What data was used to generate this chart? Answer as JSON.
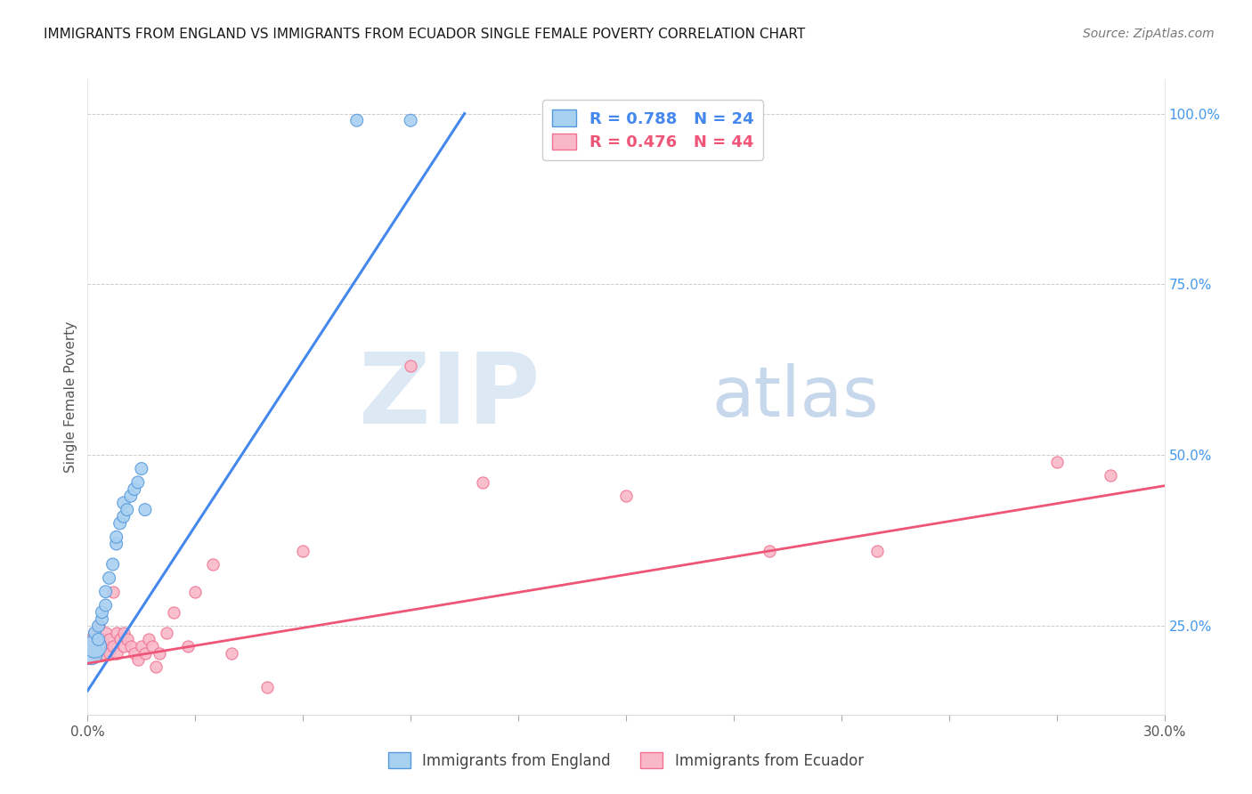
{
  "title": "IMMIGRANTS FROM ENGLAND VS IMMIGRANTS FROM ECUADOR SINGLE FEMALE POVERTY CORRELATION CHART",
  "source": "Source: ZipAtlas.com",
  "ylabel": "Single Female Poverty",
  "ylabel_right_ticks": [
    "25.0%",
    "50.0%",
    "75.0%",
    "100.0%"
  ],
  "ylabel_right_vals": [
    0.25,
    0.5,
    0.75,
    1.0
  ],
  "xmin": 0.0,
  "xmax": 0.3,
  "ymin": 0.12,
  "ymax": 1.05,
  "legend_england_R": "0.788",
  "legend_england_N": "24",
  "legend_ecuador_R": "0.476",
  "legend_ecuador_N": "44",
  "color_england_fill": "#a8d0f0",
  "color_ecuador_fill": "#f9b8c8",
  "color_england_edge": "#5599dd",
  "color_ecuador_edge": "#f07090",
  "color_england_line": "#4488ee",
  "color_ecuador_line": "#ee5577",
  "england_x": [
    0.001,
    0.002,
    0.002,
    0.003,
    0.003,
    0.004,
    0.004,
    0.005,
    0.005,
    0.006,
    0.007,
    0.008,
    0.008,
    0.009,
    0.01,
    0.01,
    0.011,
    0.012,
    0.013,
    0.014,
    0.015,
    0.016,
    0.075,
    0.09
  ],
  "england_y": [
    0.21,
    0.22,
    0.24,
    0.23,
    0.25,
    0.26,
    0.27,
    0.28,
    0.3,
    0.32,
    0.34,
    0.37,
    0.38,
    0.4,
    0.41,
    0.43,
    0.42,
    0.44,
    0.45,
    0.46,
    0.48,
    0.42,
    0.99,
    0.99
  ],
  "ecuador_x": [
    0.001,
    0.001,
    0.002,
    0.002,
    0.003,
    0.003,
    0.004,
    0.004,
    0.005,
    0.005,
    0.006,
    0.006,
    0.007,
    0.007,
    0.008,
    0.008,
    0.009,
    0.01,
    0.01,
    0.011,
    0.012,
    0.013,
    0.014,
    0.015,
    0.016,
    0.017,
    0.018,
    0.019,
    0.02,
    0.022,
    0.024,
    0.028,
    0.03,
    0.035,
    0.04,
    0.05,
    0.06,
    0.09,
    0.11,
    0.15,
    0.19,
    0.22,
    0.27,
    0.285
  ],
  "ecuador_y": [
    0.22,
    0.23,
    0.21,
    0.24,
    0.22,
    0.25,
    0.21,
    0.23,
    0.22,
    0.24,
    0.21,
    0.23,
    0.22,
    0.3,
    0.21,
    0.24,
    0.23,
    0.22,
    0.24,
    0.23,
    0.22,
    0.21,
    0.2,
    0.22,
    0.21,
    0.23,
    0.22,
    0.19,
    0.21,
    0.24,
    0.27,
    0.22,
    0.3,
    0.34,
    0.21,
    0.16,
    0.36,
    0.63,
    0.46,
    0.44,
    0.36,
    0.36,
    0.49,
    0.47
  ],
  "eng_line_x0": 0.0,
  "eng_line_x1": 0.105,
  "eng_line_y0": 0.155,
  "eng_line_y1": 1.0,
  "ecu_line_x0": 0.0,
  "ecu_line_x1": 0.3,
  "ecu_line_y0": 0.195,
  "ecu_line_y1": 0.455,
  "watermark_text": "ZIP",
  "watermark_text2": "atlas",
  "watermark_color_zip": "#dde8f5",
  "watermark_color_atlas": "#c8d8ec",
  "watermark_fontsize": 80,
  "dot_size_england": 100,
  "dot_size_ecuador": 90,
  "dot_size_large_england": 350
}
